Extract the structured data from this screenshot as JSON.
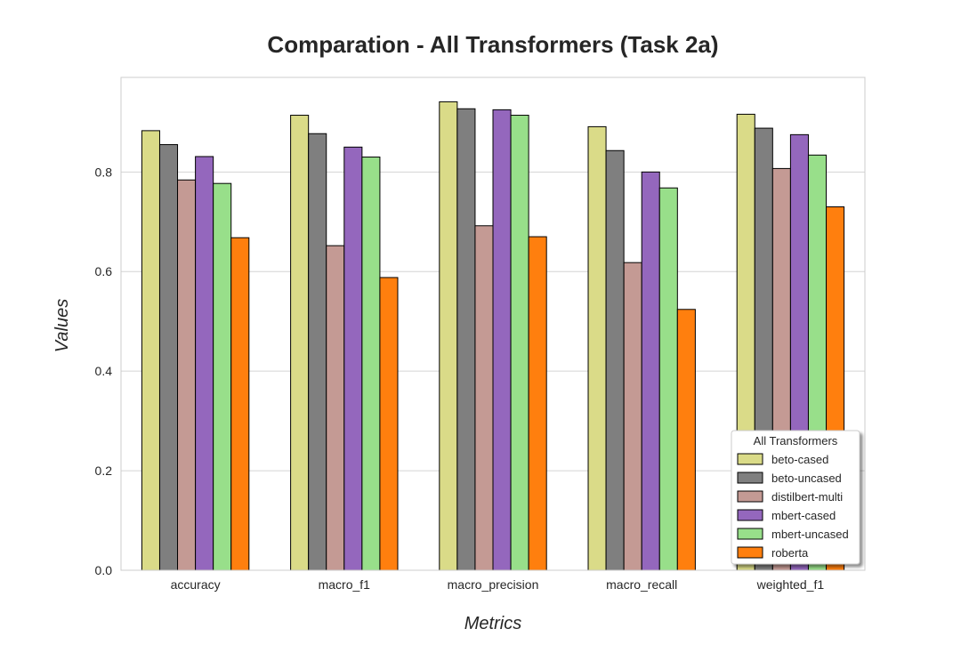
{
  "chart_data": {
    "type": "bar",
    "title": "Comparation - All Transformers (Task 2a)",
    "xlabel": "Metrics",
    "ylabel": "Values",
    "categories": [
      "accuracy",
      "macro_f1",
      "macro_precision",
      "macro_recall",
      "weighted_f1"
    ],
    "ylim": [
      0,
      0.99
    ],
    "yticks": [
      "0.0",
      "0.2",
      "0.4",
      "0.6",
      "0.8"
    ],
    "grid": true,
    "legend": {
      "title": "All Transformers",
      "placement": "bottom-right"
    },
    "series": [
      {
        "name": "beto-cased",
        "color": "#dadb88",
        "values": [
          0.883,
          0.914,
          0.941,
          0.891,
          0.916
        ]
      },
      {
        "name": "beto-uncased",
        "color": "#7f7f7f",
        "values": [
          0.855,
          0.877,
          0.927,
          0.843,
          0.888
        ]
      },
      {
        "name": "distilbert-multi",
        "color": "#c49a94",
        "values": [
          0.784,
          0.652,
          0.692,
          0.618,
          0.807
        ]
      },
      {
        "name": "mbert-cased",
        "color": "#9467bd",
        "values": [
          0.831,
          0.85,
          0.925,
          0.8,
          0.875
        ]
      },
      {
        "name": "mbert-uncased",
        "color": "#98df8a",
        "values": [
          0.777,
          0.83,
          0.914,
          0.768,
          0.834
        ]
      },
      {
        "name": "roberta",
        "color": "#ff7f0e",
        "values": [
          0.668,
          0.588,
          0.67,
          0.524,
          0.73
        ]
      }
    ]
  }
}
